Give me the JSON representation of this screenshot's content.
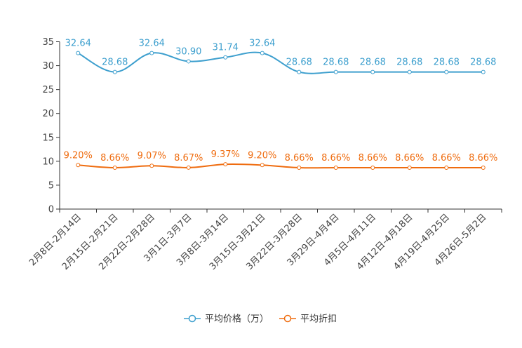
{
  "chart_data": {
    "type": "line",
    "title": "",
    "xlabel": "",
    "ylabel": "",
    "ylim": [
      0,
      35
    ],
    "yticks": [
      0,
      5,
      10,
      15,
      20,
      25,
      30,
      35
    ],
    "grid": false,
    "legend_position": "bottom-center",
    "categories": [
      "2月8日-2月14日",
      "2月15日-2月21日",
      "2月22日-2月28日",
      "3月1日-3月7日",
      "3月8日-3月14日",
      "3月15日-3月21日",
      "3月22日-3月28日",
      "3月29日-4月4日",
      "4月5日-4月11日",
      "4月12日-4月18日",
      "4月19日-4月25日",
      "4月26日-5月2日"
    ],
    "series": [
      {
        "name": "平均价格（万）",
        "color": "#3d9fce",
        "values": [
          32.64,
          28.68,
          32.64,
          30.9,
          31.74,
          32.64,
          28.68,
          28.68,
          28.68,
          28.68,
          28.68,
          28.68
        ],
        "labels": [
          "32.64",
          "28.68",
          "32.64",
          "30.90",
          "31.74",
          "32.64",
          "28.68",
          "28.68",
          "28.68",
          "28.68",
          "28.68",
          "28.68"
        ]
      },
      {
        "name": "平均折扣",
        "color": "#ef6c0f",
        "values": [
          9.2,
          8.66,
          9.07,
          8.67,
          9.37,
          9.2,
          8.66,
          8.66,
          8.66,
          8.66,
          8.66,
          8.66
        ],
        "labels": [
          "9.20%",
          "8.66%",
          "9.07%",
          "8.67%",
          "9.37%",
          "9.20%",
          "8.66%",
          "8.66%",
          "8.66%",
          "8.66%",
          "8.66%",
          "8.66%"
        ]
      }
    ]
  }
}
